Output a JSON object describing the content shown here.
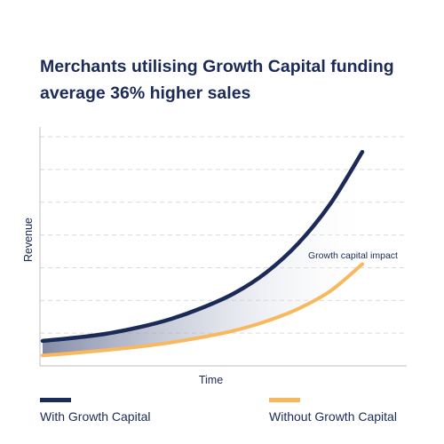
{
  "title": {
    "line1": "Merchants utilising Growth Capital funding",
    "line2": "average 36% higher sales"
  },
  "colors": {
    "with": "#1b2a57",
    "without": "#f8b85e",
    "grid": "#d9d9d9",
    "axis": "#bfbfbf",
    "text": "#1b2a57"
  },
  "chart_data": {
    "type": "area",
    "title": "Merchants utilising Growth Capital funding average 36% higher sales",
    "xlabel": "Time",
    "ylabel": "Revenue",
    "grid": true,
    "legend_position": "bottom",
    "annotation": "Growth capital impact",
    "x_ticks_labeled": false,
    "y_ticks_labeled": false,
    "x": [
      0,
      1,
      2,
      3,
      4,
      5,
      6,
      7,
      8,
      9,
      10
    ],
    "series": [
      {
        "name": "With Growth Capital",
        "values": [
          0.7,
          0.85,
          1.05,
          1.35,
          1.75,
          2.3,
          3.0,
          4.0,
          5.4,
          7.3,
          9.8
        ]
      },
      {
        "name": "Without Growth Capital",
        "values": [
          0.0,
          0.12,
          0.26,
          0.42,
          0.62,
          0.88,
          1.2,
          1.65,
          2.25,
          3.1,
          4.4
        ]
      }
    ],
    "xlim": [
      0,
      11
    ],
    "ylim": [
      -0.5,
      11
    ]
  }
}
